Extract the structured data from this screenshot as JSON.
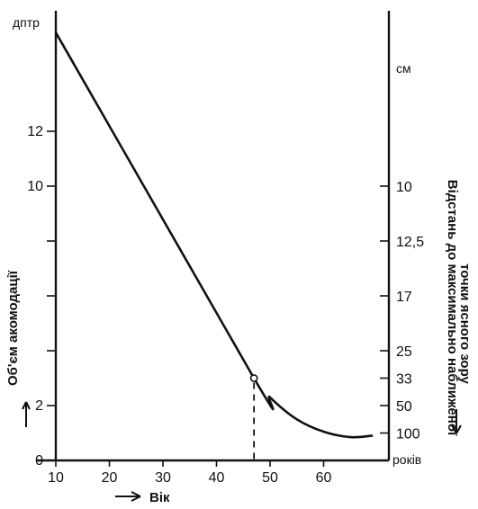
{
  "chart_data": {
    "type": "line",
    "left_axis_unit": "дптр",
    "right_axis_unit": "см",
    "x_unit": "років",
    "x_label": "Вік",
    "y_label_left": "Об'єм акомодації",
    "y_label_right_line1": "Відстань до максимально наближеної",
    "y_label_right_line2": "точки ясного зору",
    "x_ticks": [
      "10",
      "20",
      "30",
      "40",
      "50",
      "60"
    ],
    "x_tick_values": [
      10,
      20,
      30,
      40,
      50,
      60
    ],
    "left_ticks": [
      "0",
      "2",
      "10",
      "12"
    ],
    "left_tick_values": [
      0,
      2,
      10,
      12
    ],
    "right_ticks": [
      "10",
      "12,5",
      "17",
      "25",
      "33",
      "50",
      "100"
    ],
    "right_tick_dioptres": [
      10,
      8,
      6,
      4,
      3,
      2,
      1
    ],
    "xlim": [
      10,
      69
    ],
    "ylim_dioptres": [
      0,
      15.8
    ],
    "series": [
      {
        "x": [
          10,
          47,
          50,
          55,
          60,
          65,
          69
        ],
        "y": [
          15.6,
          3.0,
          2.3,
          1.5,
          1.05,
          0.85,
          0.9
        ]
      }
    ],
    "marker": {
      "x": 47,
      "y": 3.0
    },
    "dashed_drop": {
      "x": 47
    }
  }
}
